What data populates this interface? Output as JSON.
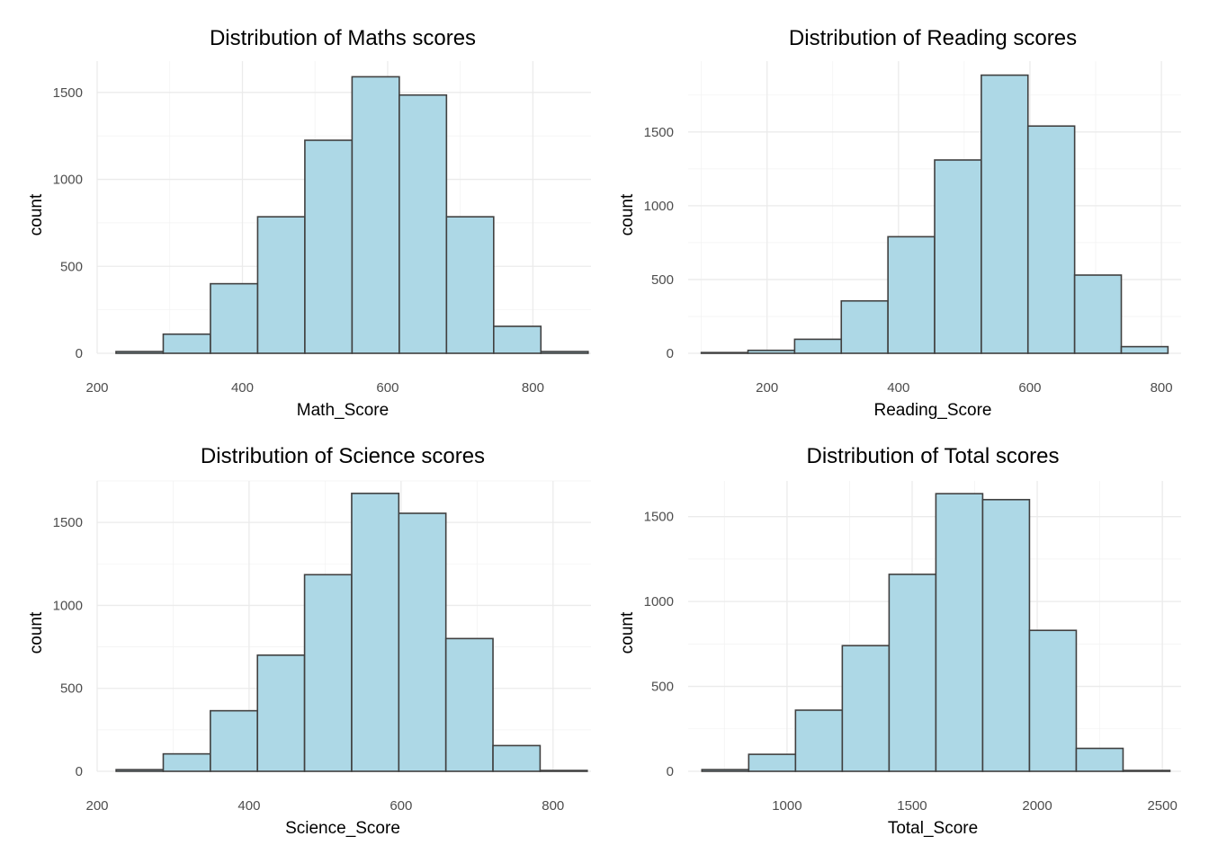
{
  "chart_data": [
    {
      "type": "bar",
      "subtype": "histogram",
      "title": "Distribution of Maths scores",
      "xlabel": "Math_Score",
      "ylabel": "count",
      "bin_edges": [
        226,
        291,
        356,
        421,
        486,
        551,
        616,
        681,
        746,
        811,
        876
      ],
      "values": [
        10,
        110,
        400,
        785,
        1225,
        1590,
        1485,
        785,
        155,
        10
      ],
      "xlim": [
        200,
        880
      ],
      "ylim": [
        0,
        1680
      ],
      "xticks": [
        200,
        400,
        600,
        800
      ],
      "xtick_labels": [
        "200",
        "400",
        "600",
        "800"
      ],
      "yticks": [
        0,
        500,
        1000,
        1500
      ],
      "ytick_labels": [
        "0",
        "500",
        "1000",
        "1500"
      ],
      "grid": true
    },
    {
      "type": "bar",
      "subtype": "histogram",
      "title": "Distribution of Reading scores",
      "xlabel": "Reading_Score",
      "ylabel": "count",
      "bin_edges": [
        100,
        171,
        242,
        313,
        384,
        455,
        526,
        597,
        668,
        739,
        810
      ],
      "values": [
        5,
        20,
        95,
        355,
        790,
        1310,
        1885,
        1540,
        530,
        45
      ],
      "xlim": [
        80,
        830
      ],
      "ylim": [
        0,
        1980
      ],
      "xticks": [
        200,
        400,
        600,
        800
      ],
      "xtick_labels": [
        "200",
        "400",
        "600",
        "800"
      ],
      "yticks": [
        0,
        500,
        1000,
        1500
      ],
      "ytick_labels": [
        "0",
        "500",
        "1000",
        "1500"
      ],
      "grid": true
    },
    {
      "type": "bar",
      "subtype": "histogram",
      "title": "Distribution of Science scores",
      "xlabel": "Science_Score",
      "ylabel": "count",
      "bin_edges": [
        225,
        287,
        349,
        411,
        473,
        535,
        597,
        659,
        721,
        783,
        845
      ],
      "values": [
        10,
        105,
        365,
        700,
        1185,
        1675,
        1555,
        800,
        155,
        5
      ],
      "xlim": [
        200,
        850
      ],
      "ylim": [
        0,
        1750
      ],
      "xticks": [
        200,
        400,
        600,
        800
      ],
      "xtick_labels": [
        "200",
        "400",
        "600",
        "800"
      ],
      "yticks": [
        0,
        500,
        1000,
        1500
      ],
      "ytick_labels": [
        "0",
        "500",
        "1000",
        "1500"
      ],
      "grid": true
    },
    {
      "type": "bar",
      "subtype": "histogram",
      "title": "Distribution of Total scores",
      "xlabel": "Total_Score",
      "ylabel": "count",
      "bin_edges": [
        660,
        847,
        1034,
        1221,
        1408,
        1595,
        1782,
        1969,
        2156,
        2343,
        2530
      ],
      "values": [
        10,
        100,
        360,
        740,
        1160,
        1635,
        1600,
        830,
        135,
        5
      ],
      "xlim": [
        605,
        2575
      ],
      "ylim": [
        0,
        1710
      ],
      "xticks": [
        1000,
        1500,
        2000,
        2500
      ],
      "xtick_labels": [
        "1000",
        "1500",
        "2000",
        "2500"
      ],
      "yticks": [
        0,
        500,
        1000,
        1500
      ],
      "ytick_labels": [
        "0",
        "500",
        "1000",
        "1500"
      ],
      "grid": true
    }
  ]
}
